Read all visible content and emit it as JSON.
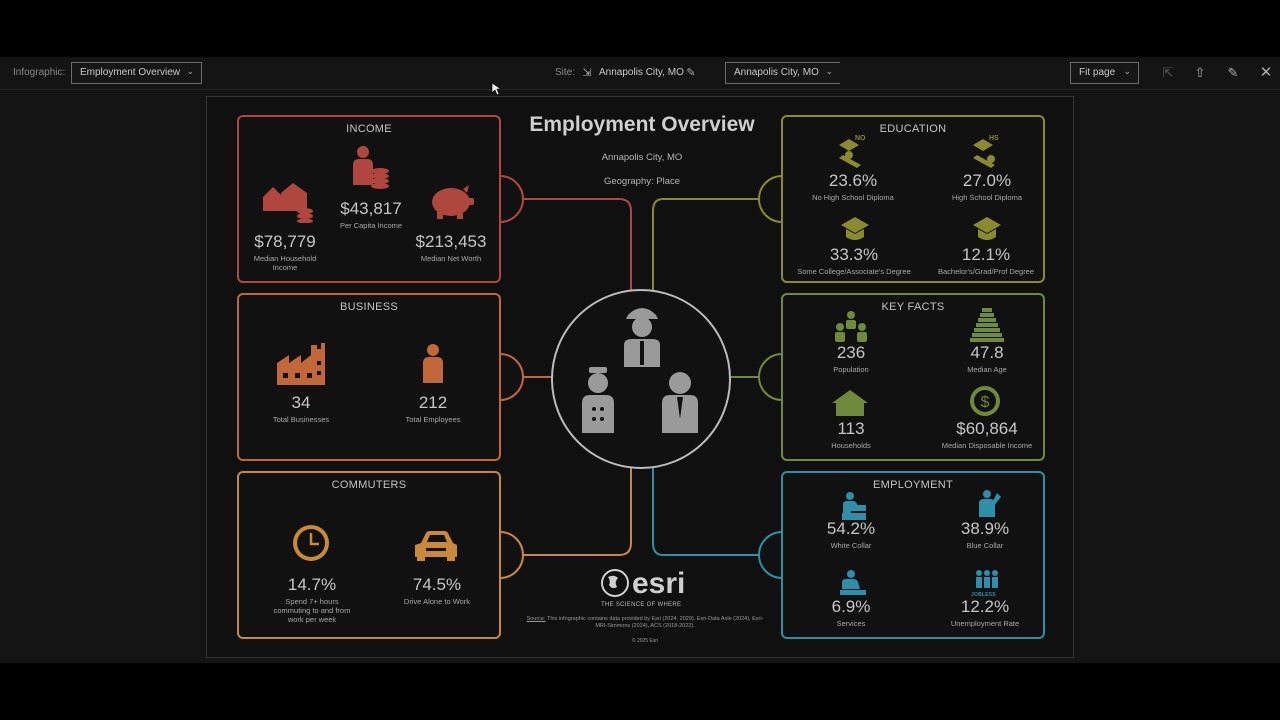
{
  "toolbar": {
    "infographic_label": "Infographic:",
    "infographic_value": "Employment Overview",
    "site_label": "Site:",
    "site_value": "Annapolis City, MO",
    "site_dropdown_value": "Annapolis City, MO",
    "zoom_value": "Fit page"
  },
  "report": {
    "title": "Employment Overview",
    "location": "Annapolis City, MO",
    "geography": "Geography: Place",
    "logo_text": "esri",
    "tagline": "THE SCIENCE OF WHERE",
    "source_label": "Source:",
    "source_text": "This infographic contains data provided by Esri (2024, 2029), Esri-Data Axle (2024), Esri-MRI-Simmons (2024), ACS (2018-2022).",
    "credit": "© 2025 Esri"
  },
  "income": {
    "title": "INCOME",
    "per_capita_value": "$43,817",
    "per_capita_label": "Per Capita Income",
    "median_household_value": "$78,779",
    "median_household_label": "Median Household Income",
    "net_worth_value": "$213,453",
    "net_worth_label": "Median Net Worth",
    "color": "#b0473f"
  },
  "business": {
    "title": "BUSINESS",
    "businesses_value": "34",
    "businesses_label": "Total Businesses",
    "employees_value": "212",
    "employees_label": "Total Employees",
    "color": "#c0683a"
  },
  "commuters": {
    "title": "COMMUTERS",
    "spend_value": "14.7%",
    "spend_label": "Spend 7+ hours commuting to and from work per week",
    "drive_value": "74.5%",
    "drive_label": "Drive Alone to Work",
    "color": "#c88a3a"
  },
  "education": {
    "title": "EDUCATION",
    "no_hs_badge": "NO",
    "hs_badge": "HS",
    "no_hs_value": "23.6%",
    "no_hs_label": "No High School Diploma",
    "hs_value": "27.0%",
    "hs_label": "High School Diploma",
    "college_value": "33.3%",
    "college_label": "Some College/Associate's Degree",
    "bachelor_value": "12.1%",
    "bachelor_label": "Bachelor's/Grad/Prof Degree",
    "color": "#8a8a30"
  },
  "key_facts": {
    "title": "KEY FACTS",
    "population_value": "236",
    "population_label": "Population",
    "median_age_value": "47.8",
    "median_age_label": "Median Age",
    "households_value": "113",
    "households_label": "Households",
    "disposable_value": "$60,864",
    "disposable_label": "Median Disposable Income",
    "color": "#6e8a3a"
  },
  "employment": {
    "title": "EMPLOYMENT",
    "white_collar_value": "54.2%",
    "white_collar_label": "White Collar",
    "blue_collar_value": "38.9%",
    "blue_collar_label": "Blue Collar",
    "services_value": "6.9%",
    "services_label": "Services",
    "unemployment_value": "12.2%",
    "unemployment_label": "Unemployment Rate",
    "jobless_badge": "JOBLESS",
    "color": "#2f8fa8"
  }
}
